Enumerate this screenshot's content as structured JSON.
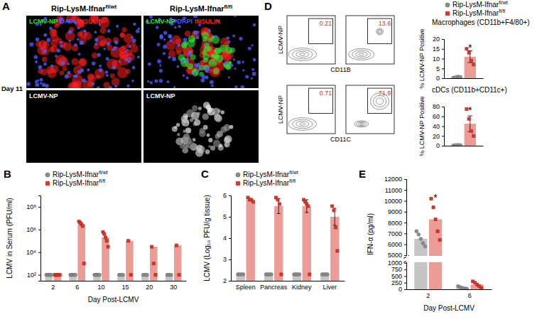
{
  "chart_data": [
    {
      "type": "image",
      "panel": "A",
      "columns": [
        "Rip-LysM-Ifnar fl/wt",
        "Rip-LysM-Ifnar fl/fl"
      ],
      "row_label": "Day 11",
      "channels": [
        {
          "name": "LCMV-NP",
          "color": "#2ee82e"
        },
        {
          "name": "DAPI",
          "color": "#4a5cff"
        },
        {
          "name": "INSULIN",
          "color": "#ff2020"
        }
      ],
      "gray_label": "LCMV-NP"
    },
    {
      "type": "bar",
      "panel": "B",
      "log": "y",
      "ylabel": "LCMV in Serum (PFU/ml)",
      "xlabel": "Day Post-LCMV",
      "categories": [
        "2",
        "6",
        "10",
        "15",
        "20",
        "30"
      ],
      "ylim": [
        30,
        1000000000
      ],
      "yticks": [
        {
          "value": 100,
          "label": "10²"
        },
        {
          "value": 10000,
          "label": "10⁴"
        },
        {
          "value": 1000000,
          "label": "10⁶"
        },
        {
          "value": 100000000,
          "label": "10⁸"
        }
      ],
      "legend": "top-left",
      "series": [
        {
          "name": "Rip-LysM-Ifnar fl/wt",
          "color": "#8c8c8c",
          "marker": "circle",
          "values": [
            100,
            100,
            100,
            100,
            100,
            100
          ],
          "points": [
            [
              100,
              100,
              100,
              100,
              100
            ],
            [
              100,
              100,
              100,
              100,
              100
            ],
            [
              100,
              100,
              100,
              100,
              100
            ],
            [
              100,
              100,
              100
            ],
            [
              100,
              100,
              100
            ],
            [
              100,
              100,
              100
            ]
          ]
        },
        {
          "name": "Rip-LysM-Ifnar fl/fl",
          "color": "#d9372b",
          "marker": "square",
          "values": [
            100,
            3000000,
            200000,
            100000,
            30000,
            40000
          ],
          "points": [
            [
              100,
              100,
              100,
              100,
              100
            ],
            [
              5000000,
              4000000,
              3000000,
              2000000,
              1000
            ],
            [
              600000,
              400000,
              200000,
              100000,
              30000
            ],
            [
              100000,
              100
            ],
            [
              30000,
              1000,
              100
            ],
            [
              40000,
              100
            ]
          ]
        }
      ]
    },
    {
      "type": "bar",
      "panel": "C",
      "ylabel": "LCMV (Log₁₀ PFU/g tissue)",
      "categories": [
        "Spleen",
        "Pancreas",
        "Kidney",
        "Liver"
      ],
      "ylim": [
        2,
        6
      ],
      "yticks": [
        2,
        3,
        4,
        5,
        6
      ],
      "legend": "top-left",
      "series": [
        {
          "name": "Rip-LysM-Ifnar fl/wt",
          "color": "#8c8c8c",
          "marker": "circle",
          "values": [
            2.3,
            2.3,
            2.3,
            2.3
          ],
          "points": [
            [
              2.3,
              2.3,
              2.3,
              2.3
            ],
            [
              2.3,
              2.3,
              2.3,
              2.3
            ],
            [
              2.3,
              2.3,
              2.3,
              2.3
            ],
            [
              2.3,
              2.3,
              2.3,
              2.3
            ]
          ]
        },
        {
          "name": "Rip-LysM-Ifnar fl/fl",
          "color": "#d9372b",
          "marker": "square",
          "values": [
            5.8,
            5.5,
            5.5,
            5.0
          ],
          "errors": [
            0.05,
            0.35,
            0.3,
            0.4
          ],
          "points": [
            [
              5.9,
              5.8,
              5.8,
              5.7
            ],
            [
              5.9,
              5.8,
              5.6,
              2.3
            ],
            [
              5.8,
              5.7,
              5.6,
              5.5,
              2.3
            ],
            [
              5.5,
              5.3,
              4.5,
              3.4
            ]
          ]
        }
      ]
    },
    {
      "type": "flow",
      "panel": "D",
      "y_label": "LCMV-NP",
      "rows": [
        {
          "x_label": "CD11B",
          "gates": [
            0.21,
            13.6
          ]
        },
        {
          "x_label": "CD11C",
          "gates": [
            0.71,
            71.9
          ]
        }
      ]
    },
    {
      "type": "bar",
      "title": "Macrophages (CD11b+F4/80+)",
      "ylabel": "% LCMV-NP Positive",
      "categories": [
        null
      ],
      "ylim": [
        0,
        20
      ],
      "yticks": [
        0,
        5,
        10,
        15,
        20
      ],
      "legend": "top",
      "annotations": [
        {
          "text": "*",
          "series": 1,
          "index": 0
        }
      ],
      "series": [
        {
          "name": "Rip-LysM-Ifnar fl/wt",
          "color": "#8c8c8c",
          "marker": "circle",
          "values": [
            0.5
          ],
          "errors": [
            0.3
          ],
          "points": [
            [
              0.2,
              0.5,
              0.8,
              0.6
            ]
          ]
        },
        {
          "name": "Rip-LysM-Ifnar fl/fl",
          "color": "#d9372b",
          "marker": "square",
          "values": [
            11
          ],
          "errors": [
            3
          ],
          "points": [
            [
              15,
              13,
              9,
              7
            ]
          ]
        }
      ]
    },
    {
      "type": "bar",
      "title": "cDCs (CD11b+CD11c+)",
      "ylabel": "% LCMV-NP Positive",
      "categories": [
        null
      ],
      "ylim": [
        0,
        80
      ],
      "yticks": [
        0,
        20,
        40,
        60,
        80
      ],
      "annotations": [
        {
          "text": "*",
          "series": 1,
          "index": 0
        }
      ],
      "series": [
        {
          "color": "#8c8c8c",
          "marker": "circle",
          "values": [
            1
          ],
          "errors": [
            0.5
          ],
          "points": [
            [
              0.5,
              1,
              1.5,
              1
            ]
          ]
        },
        {
          "color": "#d9372b",
          "marker": "square",
          "values": [
            45
          ],
          "errors": [
            16
          ],
          "points": [
            [
              75,
              55,
              30,
              20
            ]
          ]
        }
      ]
    },
    {
      "type": "bar",
      "panel": "E",
      "ylabel": "IFN-α (pg/ml)",
      "xlabel": "Day Post-LCMV",
      "categories": [
        "2",
        "6"
      ],
      "ylim": [
        0,
        12000
      ],
      "ybreak": [
        1000,
        5000
      ],
      "yticks": [
        0,
        250,
        500,
        750,
        1000,
        5000,
        6000,
        7000,
        8000,
        9000,
        10000,
        11000,
        12000
      ],
      "annotations": [
        {
          "text": "*",
          "series": 1,
          "index": 0
        }
      ],
      "series": [
        {
          "color": "#8c8c8c",
          "marker": "circle",
          "values": [
            6500,
            60
          ],
          "points": [
            [
              7200,
              6900,
              6500,
              6100,
              5800
            ],
            [
              120,
              80,
              50,
              30,
              20
            ]
          ]
        },
        {
          "color": "#d9372b",
          "marker": "square",
          "values": [
            8300,
            180
          ],
          "points": [
            [
              10200,
              9400,
              8300,
              7200,
              6400
            ],
            [
              300,
              250,
              180,
              120,
              50
            ]
          ]
        }
      ]
    }
  ]
}
